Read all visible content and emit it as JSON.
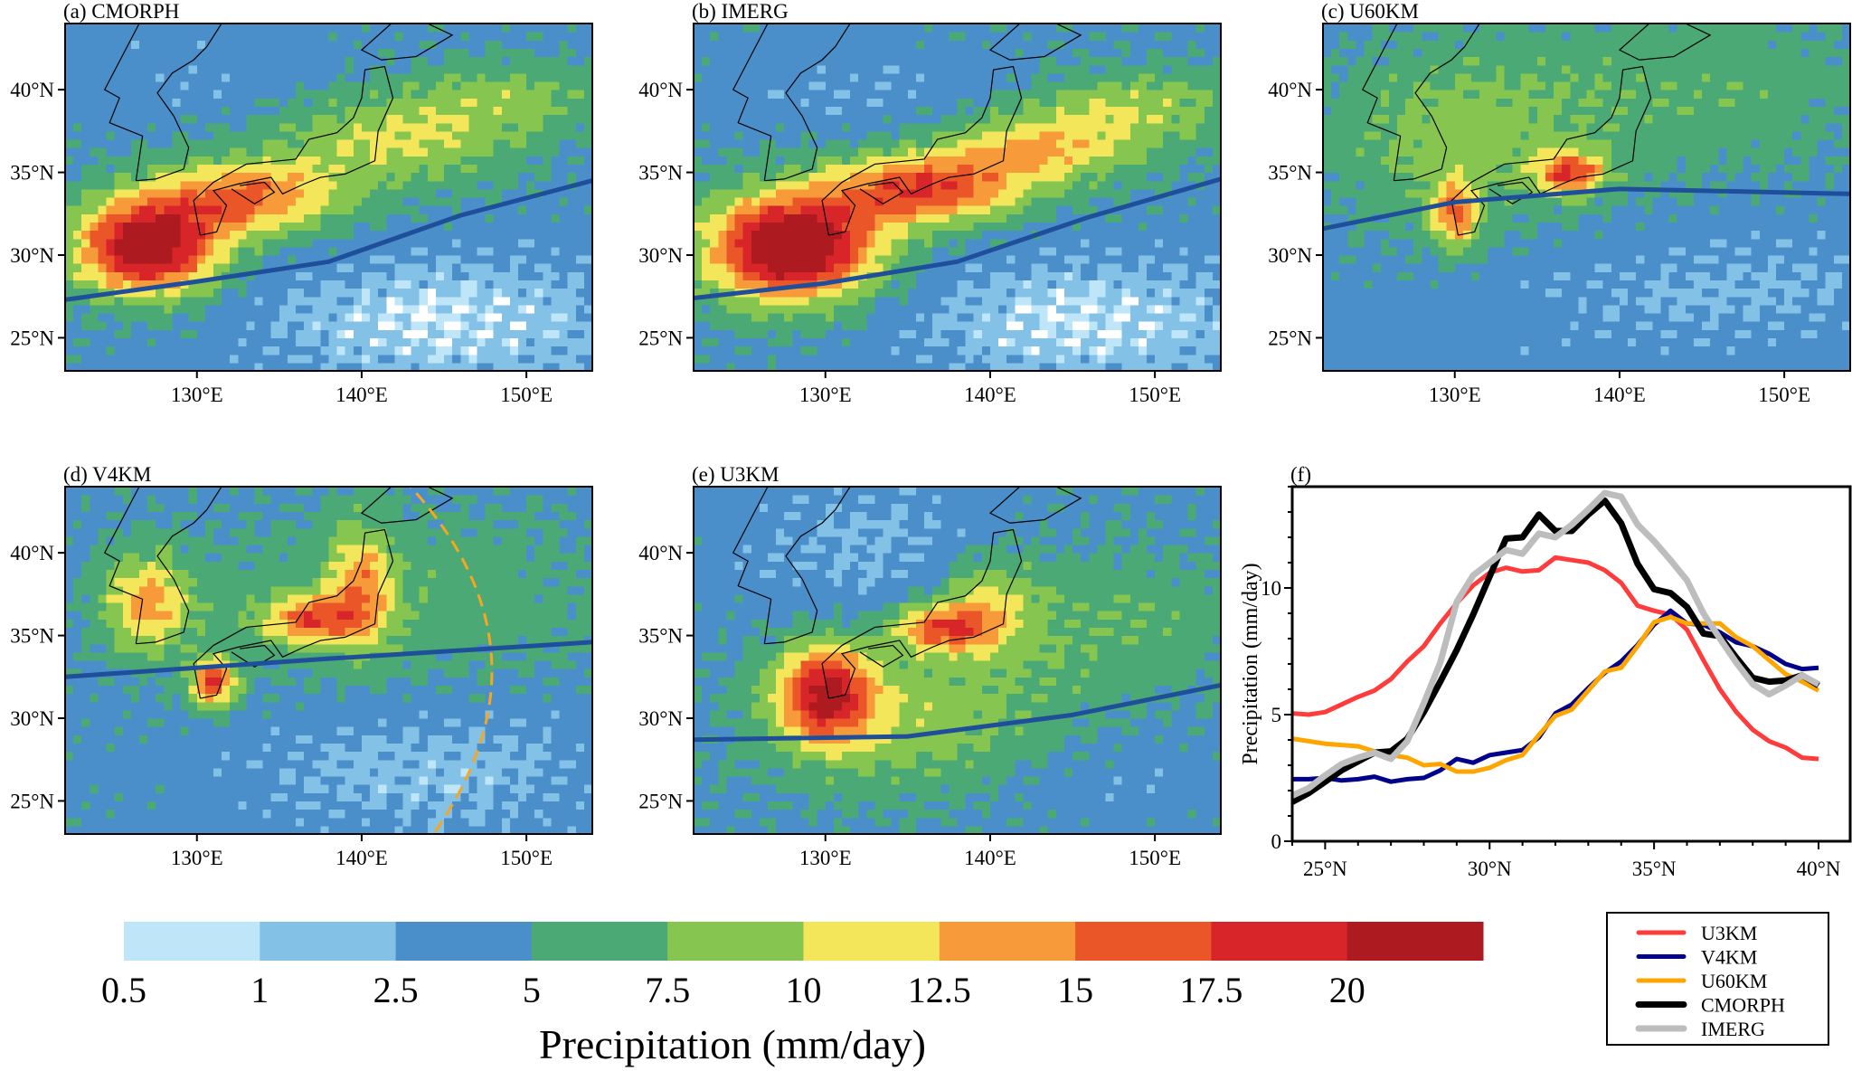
{
  "panels": [
    {
      "id": "a",
      "title": "(a) CMORPH"
    },
    {
      "id": "b",
      "title": "(b) IMERG"
    },
    {
      "id": "c",
      "title": "(c) U60KM"
    },
    {
      "id": "d",
      "title": "(d) V4KM"
    },
    {
      "id": "e",
      "title": "(e) U3KM"
    }
  ],
  "map_axes": {
    "lon_range": [
      122,
      154
    ],
    "lat_range": [
      23,
      44
    ],
    "lon_ticks": [
      {
        "v": 130,
        "label": "130°E"
      },
      {
        "v": 140,
        "label": "140°E"
      },
      {
        "v": 150,
        "label": "150°E"
      }
    ],
    "lat_ticks": [
      {
        "v": 40,
        "label": "40°N"
      },
      {
        "v": 35,
        "label": "35°N"
      },
      {
        "v": 30,
        "label": "30°N"
      },
      {
        "v": 25,
        "label": "25°N"
      }
    ],
    "front_line_color": "#1f4e9a",
    "circle_color": "#f5a623"
  },
  "colorbar": {
    "title": "Precipitation (mm/day)",
    "levels": [
      "0.5",
      "1",
      "2.5",
      "5",
      "7.5",
      "10",
      "12.5",
      "15",
      "17.5",
      "20"
    ],
    "thresholds": [
      0.5,
      1,
      2.5,
      5,
      7.5,
      10,
      12.5,
      15,
      17.5,
      20
    ],
    "colors": [
      "#bee6f8",
      "#84c1e6",
      "#4a8fca",
      "#4aa974",
      "#86c650",
      "#f3e65a",
      "#f79b3a",
      "#eb5629",
      "#d8252a",
      "#ad1a20"
    ]
  },
  "chart_data": {
    "type": "line",
    "panel_title": "(f)",
    "xlabel": "",
    "ylabel": "Precipitation (mm/day)",
    "xlim": [
      24,
      40
    ],
    "ylim": [
      0,
      14
    ],
    "xticks": [
      {
        "v": 25,
        "label": "25°N"
      },
      {
        "v": 30,
        "label": "30°N"
      },
      {
        "v": 35,
        "label": "35°N"
      },
      {
        "v": 40,
        "label": "40°N"
      }
    ],
    "yticks": [
      {
        "v": 0,
        "label": "0"
      },
      {
        "v": 5,
        "label": "5"
      },
      {
        "v": 10,
        "label": "10"
      }
    ],
    "legend_placement": "below-right",
    "x": [
      24,
      24.5,
      25,
      25.5,
      26,
      26.5,
      27,
      27.5,
      28,
      28.5,
      29,
      29.5,
      30,
      30.5,
      31,
      31.5,
      32,
      32.5,
      33,
      33.5,
      34,
      34.5,
      35,
      35.5,
      36,
      36.5,
      37,
      37.5,
      38,
      38.5,
      39,
      39.5,
      40
    ],
    "series": [
      {
        "name": "U3KM",
        "color": "#ff3b3b",
        "values": [
          5.05,
          5.0,
          5.1,
          5.4,
          5.7,
          5.95,
          6.4,
          7.1,
          7.7,
          8.6,
          9.4,
          10.1,
          10.6,
          10.8,
          10.65,
          10.7,
          11.2,
          11.1,
          11.0,
          10.7,
          10.2,
          9.3,
          9.1,
          8.95,
          8.35,
          7.15,
          6.0,
          5.1,
          4.4,
          3.95,
          3.7,
          3.3,
          3.25
        ]
      },
      {
        "name": "V4KM",
        "color": "#00008b",
        "values": [
          2.45,
          2.45,
          2.5,
          2.4,
          2.45,
          2.55,
          2.35,
          2.45,
          2.5,
          2.8,
          3.25,
          3.1,
          3.4,
          3.5,
          3.6,
          4.1,
          5.05,
          5.4,
          6.05,
          6.65,
          7.1,
          7.75,
          8.55,
          9.1,
          8.6,
          8.55,
          8.25,
          7.85,
          7.7,
          7.4,
          7.0,
          6.8,
          6.85
        ]
      },
      {
        "name": "U60KM",
        "color": "#ffa500",
        "values": [
          4.05,
          3.95,
          3.85,
          3.8,
          3.75,
          3.55,
          3.4,
          3.3,
          3.0,
          3.05,
          2.75,
          2.75,
          2.9,
          3.2,
          3.4,
          4.2,
          4.95,
          5.2,
          5.95,
          6.7,
          6.85,
          7.7,
          8.65,
          8.85,
          8.6,
          8.6,
          8.6,
          8.05,
          7.7,
          7.15,
          6.6,
          6.3,
          5.95
        ]
      },
      {
        "name": "CMORPH",
        "color": "#000000",
        "values": [
          1.55,
          1.9,
          2.35,
          2.8,
          3.15,
          3.5,
          3.55,
          4.05,
          5.1,
          6.3,
          7.55,
          8.95,
          10.45,
          11.95,
          12.0,
          12.9,
          12.25,
          12.25,
          12.9,
          13.45,
          12.55,
          10.95,
          9.95,
          9.8,
          9.25,
          8.2,
          8.1,
          7.25,
          6.45,
          6.3,
          6.35,
          6.55,
          6.15
        ]
      },
      {
        "name": "IMERG",
        "color": "#bdbdbd",
        "values": [
          1.8,
          2.1,
          2.6,
          3.05,
          3.3,
          3.5,
          3.25,
          3.95,
          5.45,
          7.05,
          9.45,
          10.5,
          11.0,
          11.5,
          11.35,
          12.15,
          12.0,
          12.5,
          13.1,
          13.75,
          13.6,
          12.5,
          11.85,
          11.1,
          10.3,
          9.0,
          8.0,
          7.05,
          6.2,
          5.8,
          6.15,
          6.55,
          6.2
        ]
      }
    ]
  }
}
